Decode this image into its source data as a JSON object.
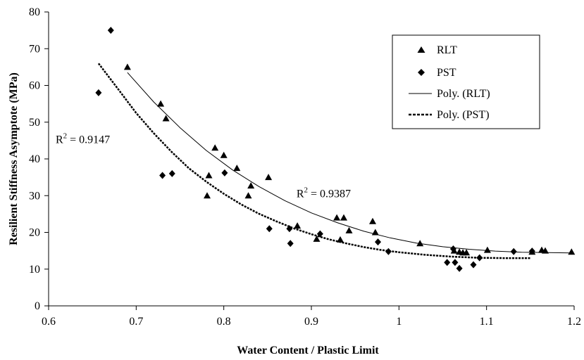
{
  "chart_data": {
    "type": "scatter",
    "xlabel": "Water Content / Plastic Limit",
    "ylabel": "Resilient Stiffness Asymptote (MPa)",
    "xlim": [
      0.6,
      1.2
    ],
    "ylim": [
      0,
      80
    ],
    "x_ticks": [
      0.6,
      0.7,
      0.8,
      0.9,
      1.0,
      1.1,
      1.2
    ],
    "x_tick_labels": [
      "0.6",
      "0.7",
      "0.8",
      "0.9",
      "1",
      "1.1",
      "1.2"
    ],
    "y_ticks": [
      0,
      10,
      20,
      30,
      40,
      50,
      60,
      70,
      80
    ],
    "y_tick_labels": [
      "0",
      "10",
      "20",
      "30",
      "40",
      "50",
      "60",
      "70",
      "80"
    ],
    "grid": false,
    "legend_position": "top-right",
    "legend": [
      "RLT",
      "PST",
      "Poly. (RLT)",
      "Poly. (PST)"
    ],
    "series": [
      {
        "name": "RLT",
        "marker": "triangle",
        "color": "#000000",
        "points": [
          [
            0.69,
            65
          ],
          [
            0.728,
            55
          ],
          [
            0.734,
            51
          ],
          [
            0.781,
            30
          ],
          [
            0.783,
            35.5
          ],
          [
            0.79,
            43
          ],
          [
            0.8,
            41
          ],
          [
            0.815,
            37.5
          ],
          [
            0.828,
            30
          ],
          [
            0.831,
            32.7
          ],
          [
            0.851,
            35
          ],
          [
            0.884,
            21.8
          ],
          [
            0.906,
            18.2
          ],
          [
            0.929,
            24
          ],
          [
            0.933,
            18
          ],
          [
            0.937,
            24
          ],
          [
            0.943,
            20.5
          ],
          [
            0.97,
            23
          ],
          [
            0.973,
            20
          ],
          [
            1.024,
            17
          ],
          [
            1.063,
            15
          ],
          [
            1.069,
            14.7
          ],
          [
            1.073,
            14.5
          ],
          [
            1.077,
            14.5
          ],
          [
            1.101,
            15.2
          ],
          [
            1.152,
            14.7
          ],
          [
            1.163,
            15.2
          ],
          [
            1.167,
            15
          ],
          [
            1.197,
            14.7
          ]
        ]
      },
      {
        "name": "PST",
        "marker": "diamond",
        "color": "#000000",
        "points": [
          [
            0.657,
            58
          ],
          [
            0.671,
            75
          ],
          [
            0.73,
            35.5
          ],
          [
            0.741,
            36
          ],
          [
            0.801,
            36.2
          ],
          [
            0.852,
            21
          ],
          [
            0.875,
            21
          ],
          [
            0.876,
            17
          ],
          [
            0.91,
            19.6
          ],
          [
            0.976,
            17.4
          ],
          [
            0.988,
            14.8
          ],
          [
            1.055,
            11.8
          ],
          [
            1.062,
            15.5
          ],
          [
            1.064,
            11.8
          ],
          [
            1.069,
            10.2
          ],
          [
            1.085,
            11.2
          ],
          [
            1.092,
            13.1
          ],
          [
            1.131,
            14.8
          ],
          [
            1.152,
            14.9
          ]
        ]
      },
      {
        "name": "Poly. (RLT)",
        "kind": "trendline",
        "line_style": "solid",
        "color": "#000000",
        "points": [
          [
            0.69,
            63.5
          ],
          [
            0.72,
            55.5
          ],
          [
            0.75,
            48.5
          ],
          [
            0.78,
            42.3
          ],
          [
            0.81,
            37
          ],
          [
            0.84,
            32.5
          ],
          [
            0.87,
            28.6
          ],
          [
            0.9,
            25.3
          ],
          [
            0.93,
            22.6
          ],
          [
            0.96,
            20.3
          ],
          [
            0.99,
            18.5
          ],
          [
            1.02,
            17.1
          ],
          [
            1.05,
            16.1
          ],
          [
            1.08,
            15.4
          ],
          [
            1.11,
            14.9
          ],
          [
            1.14,
            14.6
          ],
          [
            1.17,
            14.5
          ],
          [
            1.197,
            14.4
          ]
        ]
      },
      {
        "name": "Poly. (PST)",
        "kind": "trendline",
        "line_style": "dashed",
        "color": "#000000",
        "points": [
          [
            0.657,
            66
          ],
          [
            0.68,
            58.8
          ],
          [
            0.7,
            52.5
          ],
          [
            0.72,
            47
          ],
          [
            0.74,
            42
          ],
          [
            0.76,
            37.5
          ],
          [
            0.78,
            33.8
          ],
          [
            0.8,
            30.5
          ],
          [
            0.82,
            27.6
          ],
          [
            0.84,
            25.1
          ],
          [
            0.86,
            23
          ],
          [
            0.88,
            21.1
          ],
          [
            0.9,
            19.5
          ],
          [
            0.92,
            18.1
          ],
          [
            0.94,
            17
          ],
          [
            0.96,
            16
          ],
          [
            0.98,
            15.2
          ],
          [
            1.0,
            14.6
          ],
          [
            1.03,
            13.9
          ],
          [
            1.06,
            13.4
          ],
          [
            1.09,
            13.1
          ],
          [
            1.12,
            13
          ],
          [
            1.15,
            13
          ]
        ]
      }
    ],
    "annotations": [
      {
        "id": "r2-pst",
        "base": "R",
        "sup": "2",
        "rest": " = 0.9147",
        "x": 0.608,
        "y": 44.3
      },
      {
        "id": "r2-rlt",
        "base": "R",
        "sup": "2",
        "rest": " = 0.9387",
        "x": 0.883,
        "y": 29.6
      }
    ]
  }
}
